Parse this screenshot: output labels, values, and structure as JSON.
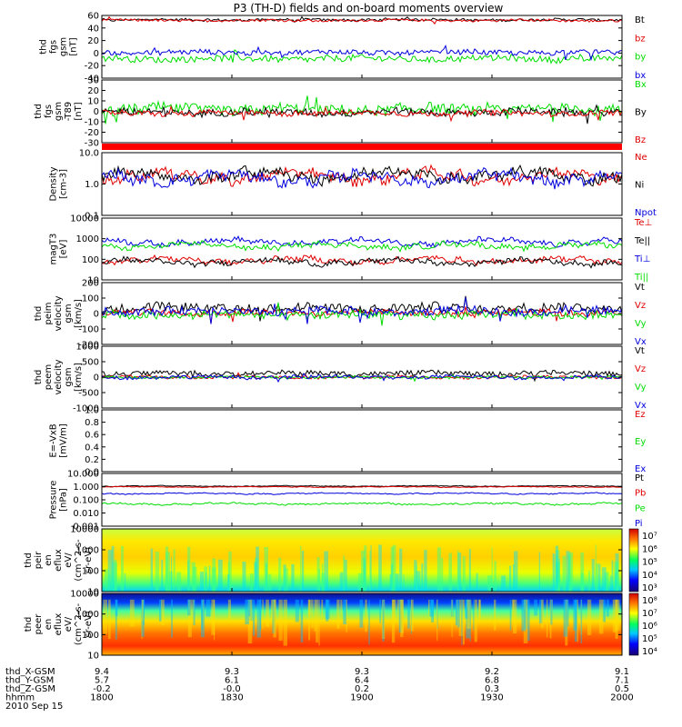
{
  "title": "P3 (TH-D) fields and on-board moments overview",
  "time_axis": {
    "rows": [
      {
        "label": "thd_X-GSM",
        "values": [
          "9.4",
          "9.3",
          "9.3",
          "9.2",
          "9.1"
        ]
      },
      {
        "label": "thd_Y-GSM",
        "values": [
          "5.7",
          "6.1",
          "6.4",
          "6.8",
          "7.1"
        ]
      },
      {
        "label": "thd_Z-GSM",
        "values": [
          "-0.2",
          "-0.0",
          "0.2",
          "0.3",
          "0.5"
        ]
      },
      {
        "label": "hhmm",
        "values": [
          "1800",
          "1830",
          "1900",
          "1930",
          "2000"
        ]
      }
    ],
    "date": "2010 Sep 15"
  },
  "colors": {
    "black": "#000000",
    "red": "#e00000",
    "green": "#00dd00",
    "blue": "#0000dd"
  },
  "chart_data": [
    {
      "type": "line",
      "ylabel": [
        "thd",
        "fgs",
        "gsm",
        "[nT]"
      ],
      "yticks": [
        "60",
        "40",
        "20",
        "0",
        "-20",
        "-40"
      ],
      "ylim": [
        -40,
        60
      ],
      "log": false,
      "series": [
        {
          "name": "Bt",
          "color": "black",
          "level": 53,
          "noise": 2
        },
        {
          "name": "bz",
          "color": "red",
          "level": 52,
          "noise": 2
        },
        {
          "name": "by",
          "color": "green",
          "level": -9,
          "noise": 5
        },
        {
          "name": "bx",
          "color": "blue",
          "level": 1,
          "noise": 4
        }
      ]
    },
    {
      "type": "line",
      "ylabel": [
        "thd",
        "fgs",
        "gsm",
        "-T89",
        "[nT]"
      ],
      "yticks": [
        "30",
        "20",
        "10",
        "0",
        "-10",
        "-20",
        "-30"
      ],
      "ylim": [
        -35,
        35
      ],
      "log": false,
      "series": [
        {
          "name": "Bx",
          "color": "green",
          "level": 2,
          "noise": 6
        },
        {
          "name": "By",
          "color": "black",
          "level": -1,
          "noise": 4
        },
        {
          "name": "Bz",
          "color": "red",
          "level": -2,
          "noise": 3
        }
      ]
    },
    {
      "type": "line",
      "ylabel": [
        "Density",
        "[cm-3]"
      ],
      "yticks": [
        "10.0",
        "1.0",
        "0.1"
      ],
      "ylim": [
        0.1,
        30
      ],
      "log": true,
      "series": [
        {
          "name": "Ne",
          "color": "red",
          "level": 3.5,
          "noise": 0.4
        },
        {
          "name": "Ni",
          "color": "black",
          "level": 3.8,
          "noise": 0.4
        },
        {
          "name": "Npot",
          "color": "blue",
          "level": 3.0,
          "noise": 0.4
        }
      ]
    },
    {
      "type": "line",
      "ylabel": [
        "magT3",
        "[eV]"
      ],
      "yticks": [
        "10000",
        "1000",
        "100",
        "10"
      ],
      "ylim": [
        10,
        10000
      ],
      "log": true,
      "series": [
        {
          "name": "Te⊥",
          "color": "red",
          "level": 90,
          "noise": 0.25
        },
        {
          "name": "Te||",
          "color": "black",
          "level": 75,
          "noise": 0.25
        },
        {
          "name": "Ti⊥",
          "color": "blue",
          "level": 700,
          "noise": 0.25
        },
        {
          "name": "Ti||",
          "color": "green",
          "level": 450,
          "noise": 0.25
        }
      ]
    },
    {
      "type": "line",
      "ylabel": [
        "thd",
        "peim",
        "velocity",
        "gsm",
        "[km/s]"
      ],
      "yticks": [
        "200",
        "100",
        "0",
        "-100",
        "-200"
      ],
      "ylim": [
        -200,
        200
      ],
      "log": false,
      "series": [
        {
          "name": "Vt",
          "color": "black",
          "level": 35,
          "noise": 30
        },
        {
          "name": "Vz",
          "color": "red",
          "level": 5,
          "noise": 20
        },
        {
          "name": "Vy",
          "color": "green",
          "level": -10,
          "noise": 25
        },
        {
          "name": "Vx",
          "color": "blue",
          "level": 15,
          "noise": 25
        }
      ]
    },
    {
      "type": "line",
      "ylabel": [
        "thd",
        "peem",
        "velocity",
        "gsm",
        "[km/s]"
      ],
      "yticks": [
        "1000",
        "500",
        "0",
        "-500",
        "-1000"
      ],
      "ylim": [
        -1000,
        1000
      ],
      "log": false,
      "series": [
        {
          "name": "Vt",
          "color": "black",
          "level": 120,
          "noise": 80
        },
        {
          "name": "Vz",
          "color": "red",
          "level": 0,
          "noise": 50
        },
        {
          "name": "Vy",
          "color": "green",
          "level": 0,
          "noise": 40
        },
        {
          "name": "Vx",
          "color": "blue",
          "level": 0,
          "noise": 60
        }
      ]
    },
    {
      "type": "line",
      "ylabel": [
        "E=-VxB",
        "[mV/m]"
      ],
      "yticks": [
        "1.0",
        "0.8",
        "0.6",
        "0.4",
        "0.2",
        "0.0"
      ],
      "ylim": [
        0,
        1
      ],
      "log": false,
      "series": [
        {
          "name": "Ez",
          "color": "red"
        },
        {
          "name": "Ey",
          "color": "green"
        },
        {
          "name": "Ex",
          "color": "blue"
        }
      ]
    },
    {
      "type": "line",
      "ylabel": [
        "Pressure",
        "[nPa]"
      ],
      "yticks": [
        "10.000",
        "1.000",
        "0.100",
        "0.010",
        "0.001"
      ],
      "ylim": [
        0.001,
        10
      ],
      "log": true,
      "series": [
        {
          "name": "Pt",
          "color": "black",
          "level": 1.1,
          "noise": 0.05
        },
        {
          "name": "Pb",
          "color": "red",
          "level": 0.95,
          "noise": 0.05
        },
        {
          "name": "Pe",
          "color": "green",
          "level": 0.05,
          "noise": 0.12
        },
        {
          "name": "Pi",
          "color": "blue",
          "level": 0.3,
          "noise": 0.08
        }
      ]
    },
    {
      "type": "heatmap",
      "ylabel": [
        "thd",
        "peir",
        "en",
        "eflux",
        "eV/",
        "(cm^2-s-",
        "sr-eV)"
      ],
      "yticks": [
        "10000",
        "1000",
        "100",
        "10"
      ],
      "ylim": [
        10,
        10000
      ],
      "log": true,
      "colorbar": [
        "10⁷",
        "10⁶",
        "10⁵",
        "10⁴",
        "10³"
      ]
    },
    {
      "type": "heatmap",
      "ylabel": [
        "thd",
        "peer",
        "en",
        "eflux",
        "eV/",
        "(cm^2-s-",
        "sr-eV)"
      ],
      "yticks": [
        "10000",
        "1000",
        "100",
        "10"
      ],
      "ylim": [
        10,
        10000
      ],
      "log": true,
      "colorbar": [
        "10⁸",
        "10⁷",
        "10⁶",
        "10⁵",
        "10⁴"
      ]
    }
  ]
}
